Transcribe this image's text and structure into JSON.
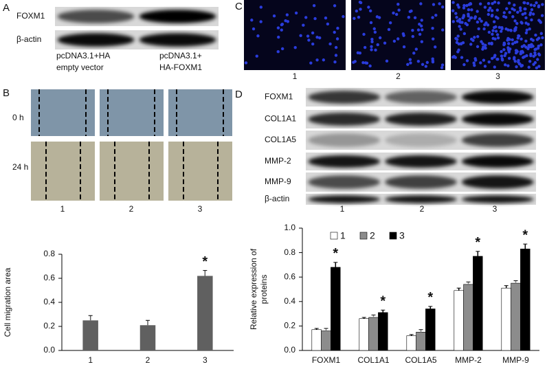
{
  "panel_labels": [
    "A",
    "B",
    "C",
    "D"
  ],
  "panel_a": {
    "rows": [
      "FOXM1",
      "β-actin"
    ],
    "lanes": [
      [
        "pcDNA3.1+HA",
        "empty vector"
      ],
      [
        "pcDNA3.1+",
        "HA-FOXM1"
      ]
    ]
  },
  "panel_b": {
    "times": [
      "0 h",
      "24 h"
    ],
    "lanes": [
      "1",
      "2",
      "3"
    ]
  },
  "panel_c": {
    "lanes": [
      "1",
      "2",
      "3"
    ]
  },
  "panel_d": {
    "rows": [
      "FOXM1",
      "COL1A1",
      "COL1A5",
      "MMP-2",
      "MMP-9",
      "β-actin"
    ],
    "lanes": [
      "1",
      "2",
      "3"
    ]
  },
  "chart_data": [
    {
      "type": "bar",
      "ylabel": [
        "Cell migration area"
      ],
      "categories": [
        "1",
        "2",
        "3"
      ],
      "values": [
        0.25,
        0.21,
        0.62
      ],
      "errors": [
        0.04,
        0.04,
        0.045
      ],
      "color": "#606060",
      "ylim": [
        0,
        0.8
      ],
      "yticks": [
        {
          "value": 0,
          "label": "0.0"
        },
        0.2,
        0.4,
        0.6,
        0.8
      ],
      "annotations": [
        {
          "text": "*",
          "category": "3"
        }
      ]
    },
    {
      "type": "bar",
      "ylabel": [
        "Relative  expression of",
        "proteins"
      ],
      "categories": [
        "FOXM1",
        "COL1A1",
        "COL1A5",
        "MMP-2",
        "MMP-9"
      ],
      "series": [
        {
          "name": "1",
          "color": "#ffffff",
          "values": [
            0.17,
            0.26,
            0.12,
            0.49,
            0.51
          ],
          "errors": [
            0.01,
            0.01,
            0.01,
            0.02,
            0.02
          ]
        },
        {
          "name": "2",
          "color": "#8c8c8c",
          "values": [
            0.16,
            0.27,
            0.15,
            0.54,
            0.55
          ],
          "errors": [
            0.02,
            0.02,
            0.02,
            0.02,
            0.02
          ]
        },
        {
          "name": "3",
          "color": "#000000",
          "values": [
            0.68,
            0.31,
            0.34,
            0.77,
            0.83
          ],
          "errors": [
            0.04,
            0.02,
            0.02,
            0.04,
            0.04
          ]
        }
      ],
      "ylim": [
        0,
        1
      ],
      "yticks": [
        {
          "value": 0,
          "label": "0.0"
        },
        0.2,
        0.4,
        0.6,
        0.8,
        {
          "value": 1,
          "label": "1.0"
        }
      ],
      "legend": "top",
      "annotations": [
        {
          "text": "*",
          "category": "FOXM1",
          "series": "3"
        },
        {
          "text": "*",
          "category": "COL1A1",
          "series": "3"
        },
        {
          "text": "*",
          "category": "COL1A5",
          "series": "3"
        },
        {
          "text": "*",
          "category": "MMP-2",
          "series": "3"
        },
        {
          "text": "*",
          "category": "MMP-9",
          "series": "3"
        }
      ]
    }
  ]
}
